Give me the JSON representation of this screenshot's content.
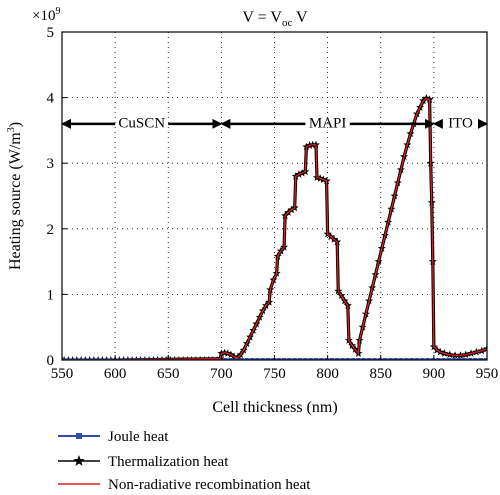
{
  "chart_data": {
    "type": "line",
    "title_main": "V = V",
    "title_sub": "oc",
    "title_tail": " V",
    "xlabel": "Cell thickness (nm)",
    "ylabel_main": "Heating source (W/m",
    "ylabel_sup": "3",
    "ylabel_tail": ")",
    "y_multiplier_base": "×10",
    "y_multiplier_exp": "9",
    "xlim": [
      550,
      950
    ],
    "ylim": [
      0,
      5
    ],
    "xticks": [
      "550",
      "600",
      "650",
      "700",
      "750",
      "800",
      "850",
      "900",
      "950"
    ],
    "yticks": [
      "0",
      "1",
      "2",
      "3",
      "4",
      "5"
    ],
    "grid": "dotted",
    "regions": [
      {
        "label": "CuSCN",
        "x_start": 550,
        "x_end": 700,
        "y": 3.6
      },
      {
        "label": "MAPI",
        "x_start": 700,
        "x_end": 900,
        "y": 3.6
      },
      {
        "label": "ITO",
        "x_start": 900,
        "x_end": 950,
        "y": 3.6
      }
    ],
    "series": [
      {
        "name": "Joule heat",
        "color": "#3050a8",
        "marker": "square",
        "x": [
          550,
          600,
          650,
          700,
          750,
          800,
          850,
          900,
          950
        ],
        "y": [
          0,
          0,
          0,
          0,
          0,
          0,
          0,
          0,
          0
        ]
      },
      {
        "name": "Thermalization heat",
        "color": "#000000",
        "marker": "star",
        "x": [
          550,
          600,
          650,
          699,
          700,
          703,
          706,
          709,
          712,
          715,
          718,
          721,
          724,
          727,
          730,
          733,
          736,
          739,
          742,
          745,
          746,
          749,
          752,
          753,
          756,
          759,
          760,
          763,
          766,
          769,
          770,
          773,
          776,
          779,
          780,
          783,
          786,
          789,
          790,
          793,
          796,
          799,
          800,
          803,
          806,
          809,
          810,
          813,
          816,
          819,
          820,
          823,
          826,
          829,
          830,
          833,
          836,
          839,
          842,
          845,
          848,
          851,
          854,
          857,
          860,
          863,
          866,
          869,
          872,
          875,
          878,
          881,
          884,
          887,
          890,
          893,
          896,
          897,
          898,
          899,
          900,
          903,
          906,
          910,
          915,
          920,
          925,
          930,
          935,
          940,
          945,
          950
        ],
        "y": [
          0,
          0,
          0.01,
          0.02,
          0.1,
          0.11,
          0.1,
          0.08,
          0.05,
          0.03,
          0.08,
          0.15,
          0.25,
          0.35,
          0.45,
          0.55,
          0.65,
          0.75,
          0.83,
          0.88,
          1.07,
          1.22,
          1.32,
          1.58,
          1.66,
          1.72,
          2.2,
          2.25,
          2.29,
          2.32,
          2.8,
          2.83,
          2.85,
          2.87,
          3.25,
          3.27,
          3.28,
          3.28,
          2.78,
          2.77,
          2.75,
          2.73,
          1.92,
          1.88,
          1.84,
          1.8,
          1.05,
          0.98,
          0.9,
          0.83,
          0.3,
          0.22,
          0.16,
          0.1,
          0.3,
          0.5,
          0.7,
          0.9,
          1.1,
          1.3,
          1.5,
          1.7,
          1.9,
          2.1,
          2.3,
          2.5,
          2.7,
          2.9,
          3.1,
          3.28,
          3.45,
          3.6,
          3.75,
          3.85,
          3.95,
          3.99,
          3.97,
          3.0,
          2.4,
          1.5,
          0.2,
          0.15,
          0.12,
          0.1,
          0.08,
          0.07,
          0.07,
          0.08,
          0.1,
          0.12,
          0.14,
          0.17
        ]
      },
      {
        "name": "Non-radiative recombination heat",
        "color": "#e02020",
        "marker": "none",
        "x": [
          550,
          600,
          650,
          699,
          700,
          703,
          706,
          709,
          712,
          715,
          718,
          721,
          724,
          727,
          730,
          733,
          736,
          739,
          742,
          745,
          746,
          749,
          752,
          753,
          756,
          759,
          760,
          763,
          766,
          769,
          770,
          773,
          776,
          779,
          780,
          783,
          786,
          789,
          790,
          793,
          796,
          799,
          800,
          803,
          806,
          809,
          810,
          813,
          816,
          819,
          820,
          823,
          826,
          829,
          830,
          833,
          836,
          839,
          842,
          845,
          848,
          851,
          854,
          857,
          860,
          863,
          866,
          869,
          872,
          875,
          878,
          881,
          884,
          887,
          890,
          893,
          896,
          897,
          898,
          899,
          900,
          903,
          906,
          910,
          915,
          920,
          925,
          930,
          935,
          940,
          945,
          950
        ],
        "y": [
          0,
          0,
          0.01,
          0.02,
          0.1,
          0.11,
          0.1,
          0.08,
          0.05,
          0.03,
          0.08,
          0.15,
          0.25,
          0.35,
          0.45,
          0.55,
          0.65,
          0.75,
          0.83,
          0.88,
          1.07,
          1.22,
          1.32,
          1.58,
          1.66,
          1.72,
          2.2,
          2.25,
          2.29,
          2.32,
          2.8,
          2.83,
          2.85,
          2.87,
          3.25,
          3.27,
          3.28,
          3.28,
          2.78,
          2.77,
          2.75,
          2.73,
          1.92,
          1.88,
          1.84,
          1.8,
          1.05,
          0.98,
          0.9,
          0.83,
          0.3,
          0.22,
          0.16,
          0.1,
          0.3,
          0.5,
          0.7,
          0.9,
          1.1,
          1.3,
          1.5,
          1.7,
          1.9,
          2.1,
          2.3,
          2.5,
          2.7,
          2.9,
          3.1,
          3.28,
          3.45,
          3.6,
          3.75,
          3.85,
          3.95,
          3.99,
          3.97,
          3.0,
          2.4,
          1.5,
          0.2,
          0.15,
          0.12,
          0.1,
          0.08,
          0.07,
          0.07,
          0.08,
          0.1,
          0.12,
          0.14,
          0.17
        ]
      }
    ],
    "legend": {
      "placement": "bottom",
      "entries": [
        "Joule heat",
        "Thermalization heat",
        "Non-radiative recombination heat"
      ]
    }
  }
}
